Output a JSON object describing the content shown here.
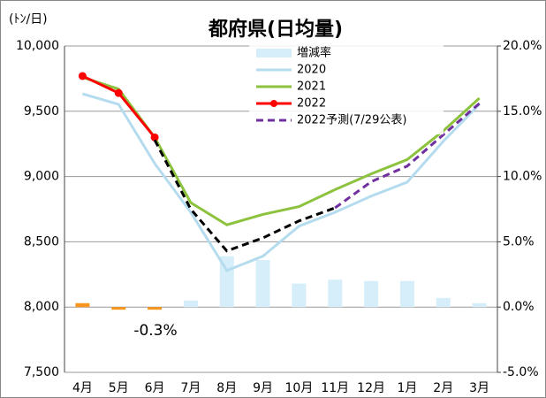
{
  "chart_data": {
    "type": "combo",
    "title": "都府県(日均量)",
    "y_unit": "(ﾄﾝ/日)",
    "annotation": "-0.3%",
    "categories": [
      "4月",
      "5月",
      "6月",
      "7月",
      "8月",
      "9月",
      "10月",
      "11月",
      "12月",
      "1月",
      "2月",
      "3月"
    ],
    "ylim": [
      7500,
      10000
    ],
    "yticks": [
      {
        "value": 7500,
        "label": "7,500"
      },
      {
        "value": 8000,
        "label": "8,000"
      },
      {
        "value": 8500,
        "label": "8,500"
      },
      {
        "value": 9000,
        "label": "9,000"
      },
      {
        "value": 9500,
        "label": "9,500"
      },
      {
        "value": 10000,
        "label": "10,000"
      }
    ],
    "y2lim": [
      -5,
      20
    ],
    "y2ticks": [
      {
        "value": -5,
        "label": "-5.0%"
      },
      {
        "value": 0,
        "label": "0.0%"
      },
      {
        "value": 5,
        "label": "5.0%"
      },
      {
        "value": 10,
        "label": "10.0%"
      },
      {
        "value": 15,
        "label": "15.0%"
      },
      {
        "value": 20,
        "label": "20.0%"
      }
    ],
    "grid": true,
    "series": [
      {
        "name": "増減率",
        "type": "bar",
        "axis": "y2",
        "color": "#d6eefa",
        "colors": [
          "#f7961e",
          "#f7961e",
          "#f7961e",
          "#d6eefa",
          "#d6eefa",
          "#d6eefa",
          "#d6eefa",
          "#d6eefa",
          "#d6eefa",
          "#d6eefa",
          "#d6eefa",
          "#d6eefa"
        ],
        "values": [
          0.3,
          -0.2,
          -0.2,
          0.5,
          3.9,
          3.6,
          1.8,
          2.1,
          2.0,
          2.0,
          0.7,
          0.3
        ]
      },
      {
        "name": "2020",
        "type": "line",
        "color": "#b4dcee",
        "values": [
          9634,
          9553,
          9100,
          8726,
          8280,
          8390,
          8620,
          8726,
          8850,
          8957,
          9270,
          9553
        ]
      },
      {
        "name": "2021",
        "type": "line",
        "color": "#8dc23e",
        "values": [
          9760,
          9670,
          9300,
          8800,
          8630,
          8710,
          8770,
          8900,
          9020,
          9130,
          9350,
          9600
        ]
      },
      {
        "name": "2022",
        "type": "line",
        "color": "#ff0000",
        "marker": true,
        "values": [
          9770,
          9640,
          9300,
          null,
          null,
          null,
          null,
          null,
          null,
          null,
          null,
          null
        ]
      },
      {
        "name": "2022予測(7/29公表)",
        "type": "line",
        "color": "#7030a0",
        "dash": true,
        "values": [
          null,
          null,
          null,
          null,
          null,
          null,
          null,
          8760,
          8960,
          9080,
          9320,
          9560
        ]
      },
      {
        "type": "line",
        "color": "#000000",
        "dash": true,
        "values": [
          null,
          null,
          9280,
          8750,
          8430,
          8530,
          8660,
          8760,
          null,
          null,
          null,
          null
        ]
      }
    ]
  }
}
